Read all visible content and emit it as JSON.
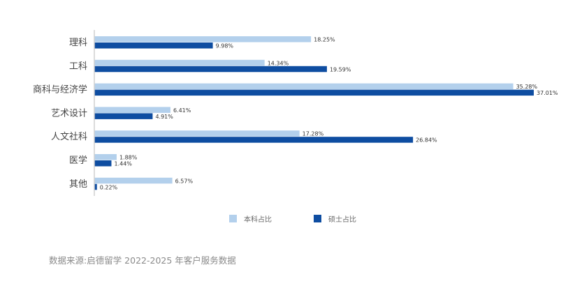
{
  "chart_data": {
    "type": "bar",
    "orientation": "horizontal",
    "categories": [
      "理科",
      "工科",
      "商科与经济学",
      "艺术设计",
      "人文社科",
      "医学",
      "其他"
    ],
    "series": [
      {
        "name": "本科占比",
        "color": "#b3d0ec",
        "values": [
          18.25,
          14.34,
          35.28,
          6.41,
          17.28,
          1.88,
          6.57
        ],
        "labels": [
          "18.25%",
          "14.34%",
          "35.28%",
          "6.41%",
          "17.28%",
          "1.88%",
          "6.57%"
        ]
      },
      {
        "name": "硕士占比",
        "color": "#0e4da1",
        "values": [
          9.98,
          19.59,
          37.01,
          4.91,
          26.84,
          1.44,
          0.22
        ],
        "labels": [
          "9.98%",
          "19.59%",
          "37.01%",
          "4.91%",
          "26.84%",
          "1.44%",
          "0.22%"
        ]
      }
    ],
    "xlim": [
      0,
      37.01
    ],
    "grid": false,
    "legend_position": "bottom",
    "unit": "%"
  },
  "source_note": "数据来源:启德留学 2022-2025 年客户服务数据"
}
